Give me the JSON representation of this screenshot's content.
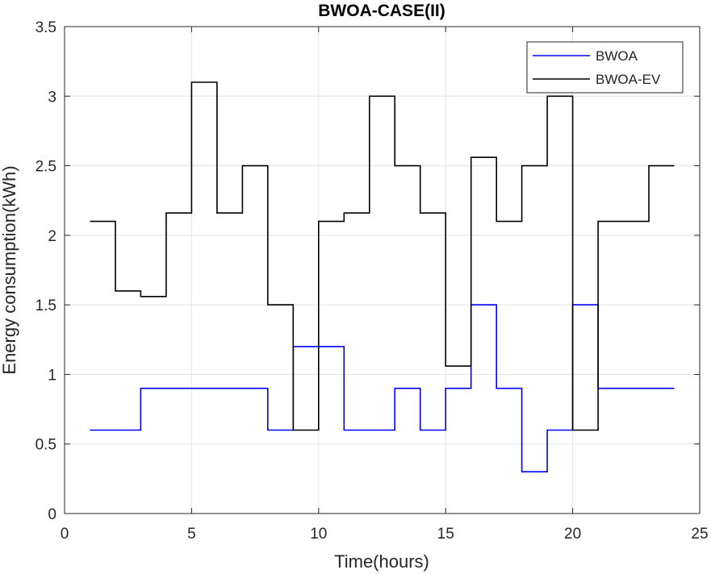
{
  "chart_data": {
    "type": "line",
    "step": "post",
    "title": "BWOA-CASE(II)",
    "xlabel": "Time(hours)",
    "ylabel": "Energy consumption(kWh)",
    "xlim": [
      0,
      25
    ],
    "ylim": [
      0,
      3.5
    ],
    "xticks": [
      0,
      5,
      10,
      15,
      20,
      25
    ],
    "xtick_labels": [
      "0",
      "5",
      "10",
      "15",
      "20",
      "25"
    ],
    "yticks": [
      0,
      0.5,
      1,
      1.5,
      2,
      2.5,
      3,
      3.5
    ],
    "ytick_labels": [
      "0",
      "0.5",
      "1",
      "1.5",
      "2",
      "2.5",
      "3",
      "3.5"
    ],
    "grid": true,
    "legend_position": "top-right",
    "x": [
      1,
      2,
      3,
      4,
      5,
      6,
      7,
      8,
      9,
      10,
      11,
      12,
      13,
      14,
      15,
      16,
      17,
      18,
      19,
      20,
      21,
      22,
      23,
      24
    ],
    "series": [
      {
        "name": "BWOA",
        "color": "#0000ff",
        "values": [
          0.6,
          0.6,
          0.9,
          0.9,
          0.9,
          0.9,
          0.9,
          0.6,
          1.2,
          1.2,
          0.6,
          0.6,
          0.9,
          0.6,
          0.9,
          1.5,
          0.9,
          0.3,
          0.6,
          1.5,
          0.9,
          0.9,
          0.9,
          0.9
        ]
      },
      {
        "name": "BWOA-EV",
        "color": "#000000",
        "values": [
          2.1,
          1.6,
          1.56,
          2.16,
          3.1,
          2.16,
          2.5,
          1.5,
          0.6,
          2.1,
          2.16,
          3.0,
          2.5,
          2.16,
          1.06,
          2.56,
          2.1,
          2.5,
          3.0,
          0.6,
          2.1,
          2.1,
          2.5,
          2.5
        ]
      }
    ]
  }
}
